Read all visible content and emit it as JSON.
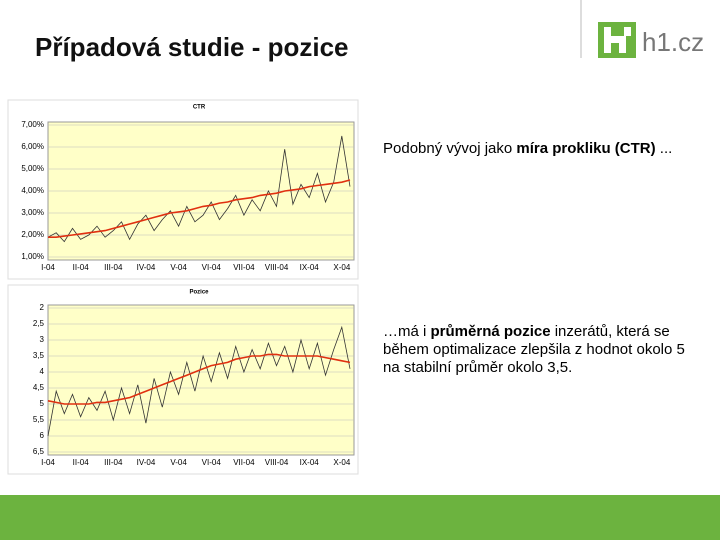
{
  "header": {
    "title": "Případová studie - pozice",
    "logo": "h1.cz"
  },
  "texts": [
    {
      "parts": [
        "Podobný vývoj jako ",
        "míra prokliku (CTR)",
        " ..."
      ]
    },
    {
      "parts": [
        "…má i ",
        "průměrná pozice",
        " inzerátů, která se během optimalizace zlepšila z hodnot okolo 5 na stabilní průměr okolo 3,5."
      ]
    }
  ],
  "chart_data": [
    {
      "type": "line",
      "title": "CTR",
      "categories": [
        "I-04",
        null,
        null,
        null,
        "II-04",
        null,
        null,
        null,
        "III-04",
        null,
        null,
        null,
        "IV-04",
        null,
        null,
        null,
        "V-04",
        null,
        null,
        null,
        "VI-04",
        null,
        null,
        null,
        "VII-04",
        null,
        null,
        null,
        "VIII-04",
        null,
        null,
        null,
        "IX-04",
        null,
        null,
        null,
        "X-04",
        null
      ],
      "series": [
        {
          "color": "#333333",
          "values": [
            1.9,
            2.1,
            1.7,
            2.3,
            1.8,
            2.0,
            2.4,
            1.9,
            2.2,
            2.6,
            1.8,
            2.5,
            2.9,
            2.2,
            2.7,
            3.1,
            2.4,
            3.3,
            2.6,
            2.9,
            3.5,
            2.7,
            3.2,
            3.8,
            2.9,
            3.6,
            3.1,
            4.0,
            3.3,
            5.9,
            3.4,
            4.3,
            3.7,
            4.8,
            3.5,
            4.4,
            6.5,
            4.2
          ]
        },
        {
          "color": "#e03010",
          "values": [
            1.9,
            1.9,
            1.95,
            2.0,
            2.05,
            2.1,
            2.15,
            2.2,
            2.3,
            2.4,
            2.5,
            2.6,
            2.7,
            2.8,
            2.9,
            3.0,
            3.05,
            3.1,
            3.2,
            3.3,
            3.35,
            3.45,
            3.5,
            3.6,
            3.65,
            3.7,
            3.8,
            3.85,
            3.9,
            4.0,
            4.05,
            4.1,
            4.2,
            4.25,
            4.3,
            4.35,
            4.4,
            4.5
          ]
        }
      ],
      "ylim": [
        1,
        7
      ],
      "yticks": [
        {
          "value": 1,
          "label": "1,00%"
        },
        {
          "value": 2,
          "label": "2,00%"
        },
        {
          "value": 3,
          "label": "3,00%"
        },
        {
          "value": 4,
          "label": "4,00%"
        },
        {
          "value": 5,
          "label": "5,00%"
        },
        {
          "value": 6,
          "label": "6,00%"
        },
        {
          "value": 7,
          "label": "7,00%"
        }
      ],
      "grid": true,
      "background": "#ffffc8"
    },
    {
      "type": "line",
      "title": "Pozice",
      "categories": [
        "I-04",
        null,
        null,
        null,
        "II-04",
        null,
        null,
        null,
        "III-04",
        null,
        null,
        null,
        "IV-04",
        null,
        null,
        null,
        "V-04",
        null,
        null,
        null,
        "VI-04",
        null,
        null,
        null,
        "VII-04",
        null,
        null,
        null,
        "VIII-04",
        null,
        null,
        null,
        "IX-04",
        null,
        null,
        null,
        "X-04",
        null
      ],
      "series": [
        {
          "color": "#333333",
          "values": [
            6.0,
            4.6,
            5.3,
            4.7,
            5.4,
            4.8,
            5.2,
            4.6,
            5.5,
            4.5,
            5.3,
            4.4,
            5.6,
            4.2,
            5.1,
            4.0,
            4.7,
            3.7,
            4.6,
            3.5,
            4.3,
            3.4,
            4.2,
            3.2,
            4.0,
            3.3,
            3.9,
            3.1,
            3.8,
            3.2,
            4.0,
            3.0,
            3.9,
            3.1,
            4.1,
            3.3,
            2.6,
            3.9
          ]
        },
        {
          "color": "#e03010",
          "values": [
            4.9,
            4.95,
            5.0,
            5.0,
            5.0,
            5.0,
            4.95,
            4.95,
            4.9,
            4.85,
            4.8,
            4.7,
            4.6,
            4.5,
            4.4,
            4.3,
            4.2,
            4.1,
            4.0,
            3.9,
            3.8,
            3.75,
            3.7,
            3.6,
            3.55,
            3.5,
            3.5,
            3.45,
            3.45,
            3.5,
            3.5,
            3.5,
            3.5,
            3.5,
            3.55,
            3.6,
            3.65,
            3.7
          ]
        }
      ],
      "ylim": [
        6.5,
        2
      ],
      "yticks": [
        2,
        {
          "value": 2.5,
          "label": "2,5"
        },
        3,
        {
          "value": 3.5,
          "label": "3,5"
        },
        4,
        {
          "value": 4.5,
          "label": "4,5"
        },
        5,
        {
          "value": 5.5,
          "label": "5,5"
        },
        6,
        {
          "value": 6.5,
          "label": "6,5"
        }
      ],
      "grid": true,
      "background": "#ffffc8"
    }
  ]
}
